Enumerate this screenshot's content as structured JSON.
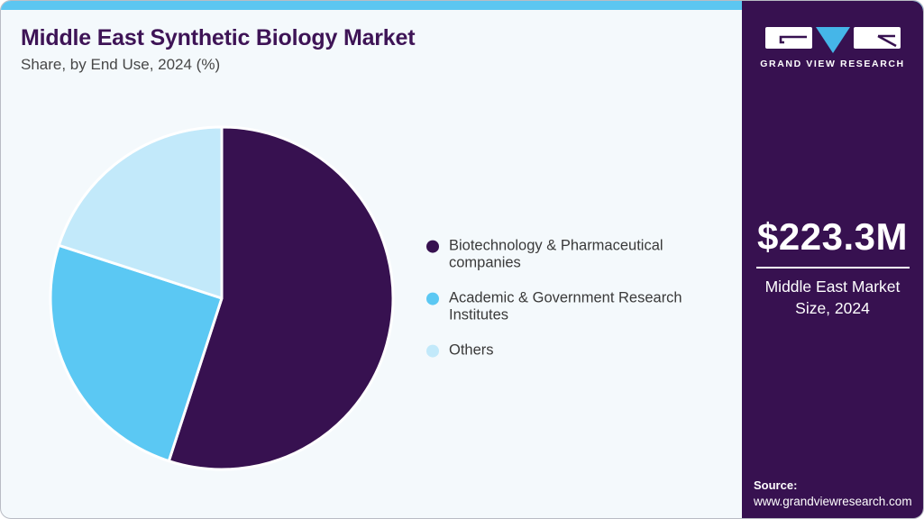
{
  "header": {
    "title": "Middle East Synthetic Biology Market",
    "subtitle": "Share, by End Use, 2024 (%)"
  },
  "chart_data": {
    "type": "pie",
    "title": "Middle East Synthetic Biology Market Share, by End Use, 2024 (%)",
    "unit": "%",
    "start_angle_deg": 0,
    "direction": "clockwise",
    "values_estimated_from_angles": true,
    "slices": [
      {
        "label": "Biotechnology & Pharmaceutical companies",
        "value": 55,
        "color": "#371150"
      },
      {
        "label": "Academic & Government Research Institutes",
        "value": 25,
        "color": "#5BC8F3"
      },
      {
        "label": "Others",
        "value": 20,
        "color": "#C2E9FA"
      }
    ],
    "legend_position": "right",
    "slice_gap_stroke": "#FFFFFF"
  },
  "sidebar": {
    "logo": {
      "brand": "GRAND VIEW RESEARCH"
    },
    "stat": {
      "value": "$223.3M",
      "caption": "Middle East Market Size, 2024"
    },
    "source": {
      "label": "Source:",
      "url": "www.grandviewresearch.com"
    }
  },
  "colors": {
    "accent_bar": "#5CC6F1",
    "sidebar_bg": "#371150",
    "main_bg": "#F4F9FC",
    "title": "#3E1456",
    "subtitle": "#474747",
    "legend_text": "#3A3A3A",
    "logo_triangle": "#45B6E8",
    "logo_tile_bg": "#FFFFFF"
  }
}
